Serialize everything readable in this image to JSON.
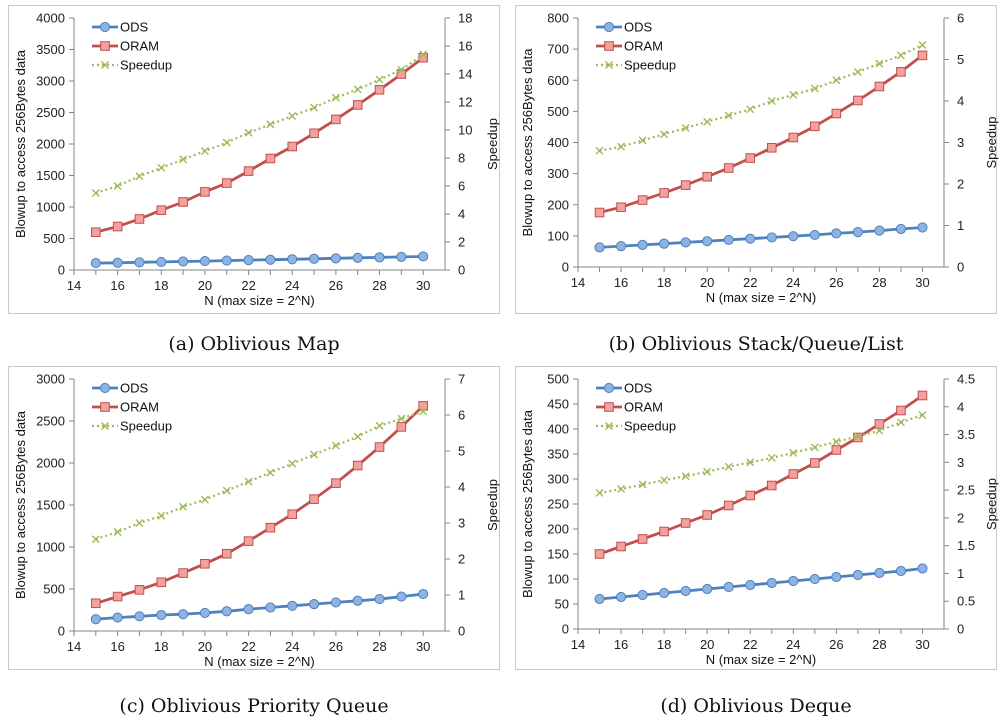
{
  "colors": {
    "ods": "#4f81bd",
    "ods_fill": "#8db3e2",
    "oram": "#c0504d",
    "oram_fill": "#f2a19e",
    "speedup": "#9bbb59",
    "axis": "#868686",
    "frame": "#c8c8c8"
  },
  "chart_data": [
    {
      "id": "a",
      "type": "line",
      "caption": "(a) Oblivious Map",
      "xlabel": "N (max size = 2^N)",
      "ylabel": "Blowup to access 256Bytes data",
      "y2label": "Speedup",
      "x": [
        15,
        16,
        17,
        18,
        19,
        20,
        21,
        22,
        23,
        24,
        25,
        26,
        27,
        28,
        29,
        30
      ],
      "xlim": [
        14,
        31
      ],
      "xticks": [
        14,
        16,
        18,
        20,
        22,
        24,
        26,
        28,
        30
      ],
      "ylim": [
        0,
        4000
      ],
      "yticks": [
        0,
        500,
        1000,
        1500,
        2000,
        2500,
        3000,
        3500,
        4000
      ],
      "y2lim": [
        0,
        18
      ],
      "y2ticks": [
        0,
        2,
        4,
        6,
        8,
        10,
        12,
        14,
        16,
        18
      ],
      "legend": [
        "ODS",
        "ORAM",
        "Speedup"
      ],
      "series": [
        {
          "name": "ODS",
          "axis": "left",
          "marker": "circle",
          "values": [
            110,
            115,
            122,
            128,
            135,
            142,
            150,
            157,
            163,
            170,
            178,
            185,
            193,
            200,
            208,
            215
          ]
        },
        {
          "name": "ORAM",
          "axis": "left",
          "marker": "square",
          "values": [
            600,
            690,
            810,
            950,
            1080,
            1240,
            1380,
            1570,
            1770,
            1960,
            2170,
            2390,
            2620,
            2860,
            3110,
            3370
          ]
        },
        {
          "name": "Speedup",
          "axis": "right",
          "marker": "x",
          "values": [
            5.5,
            6.0,
            6.7,
            7.3,
            7.9,
            8.5,
            9.1,
            9.8,
            10.4,
            11.0,
            11.6,
            12.3,
            12.9,
            13.6,
            14.3,
            15.4
          ]
        }
      ]
    },
    {
      "id": "b",
      "type": "line",
      "caption": "(b) Oblivious Stack/Queue/List",
      "xlabel": "N (max size = 2^N)",
      "ylabel": "Blowup to access 256Bytes data",
      "y2label": "Speedup",
      "x": [
        15,
        16,
        17,
        18,
        19,
        20,
        21,
        22,
        23,
        24,
        25,
        26,
        27,
        28,
        29,
        30
      ],
      "xlim": [
        14,
        31
      ],
      "xticks": [
        14,
        16,
        18,
        20,
        22,
        24,
        26,
        28,
        30
      ],
      "ylim": [
        0,
        800
      ],
      "yticks": [
        0,
        100,
        200,
        300,
        400,
        500,
        600,
        700,
        800
      ],
      "y2lim": [
        0,
        6
      ],
      "y2ticks": [
        0,
        1,
        2,
        3,
        4,
        5,
        6
      ],
      "legend": [
        "ODS",
        "ORAM",
        "Speedup"
      ],
      "series": [
        {
          "name": "ODS",
          "axis": "left",
          "marker": "circle",
          "values": [
            63,
            67,
            71,
            75,
            79,
            83,
            87,
            91,
            95,
            99,
            103,
            108,
            112,
            117,
            122,
            127
          ]
        },
        {
          "name": "ORAM",
          "axis": "left",
          "marker": "square",
          "values": [
            175,
            192,
            215,
            238,
            263,
            290,
            318,
            350,
            383,
            416,
            452,
            493,
            535,
            580,
            627,
            680
          ]
        },
        {
          "name": "Speedup",
          "axis": "right",
          "marker": "x",
          "values": [
            2.8,
            2.9,
            3.05,
            3.2,
            3.35,
            3.5,
            3.65,
            3.8,
            4.0,
            4.15,
            4.3,
            4.5,
            4.7,
            4.9,
            5.1,
            5.35
          ]
        }
      ]
    },
    {
      "id": "c",
      "type": "line",
      "caption": "(c) Oblivious Priority Queue",
      "xlabel": "N (max size = 2^N)",
      "ylabel": "Blowup to access 256Bytes data",
      "y2label": "Speedup",
      "x": [
        15,
        16,
        17,
        18,
        19,
        20,
        21,
        22,
        23,
        24,
        25,
        26,
        27,
        28,
        29,
        30
      ],
      "xlim": [
        14,
        31
      ],
      "xticks": [
        14,
        16,
        18,
        20,
        22,
        24,
        26,
        28,
        30
      ],
      "ylim": [
        0,
        3000
      ],
      "yticks": [
        0,
        500,
        1000,
        1500,
        2000,
        2500,
        3000
      ],
      "y2lim": [
        0,
        7
      ],
      "y2ticks": [
        0,
        1,
        2,
        3,
        4,
        5,
        6,
        7
      ],
      "legend": [
        "ODS",
        "ORAM",
        "Speedup"
      ],
      "series": [
        {
          "name": "ODS",
          "axis": "left",
          "marker": "circle",
          "values": [
            140,
            160,
            175,
            190,
            200,
            215,
            235,
            260,
            280,
            300,
            320,
            340,
            360,
            380,
            410,
            440
          ]
        },
        {
          "name": "ORAM",
          "axis": "left",
          "marker": "square",
          "values": [
            330,
            410,
            490,
            580,
            690,
            800,
            920,
            1070,
            1230,
            1390,
            1570,
            1760,
            1970,
            2190,
            2430,
            2680
          ]
        },
        {
          "name": "Speedup",
          "axis": "right",
          "marker": "x",
          "values": [
            2.55,
            2.75,
            3.0,
            3.2,
            3.45,
            3.65,
            3.9,
            4.15,
            4.4,
            4.65,
            4.9,
            5.15,
            5.4,
            5.7,
            5.9,
            6.1
          ]
        }
      ]
    },
    {
      "id": "d",
      "type": "line",
      "caption": "(d) Oblivious Deque",
      "xlabel": "N (max size = 2^N)",
      "ylabel": "Blowup  to access 256Bytes data",
      "y2label": "Speedup",
      "x": [
        15,
        16,
        17,
        18,
        19,
        20,
        21,
        22,
        23,
        24,
        25,
        26,
        27,
        28,
        29,
        30
      ],
      "xlim": [
        14,
        31
      ],
      "xticks": [
        14,
        16,
        18,
        20,
        22,
        24,
        26,
        28,
        30
      ],
      "ylim": [
        0,
        500
      ],
      "yticks": [
        0,
        50,
        100,
        150,
        200,
        250,
        300,
        350,
        400,
        450,
        500
      ],
      "y2lim": [
        0,
        4.5
      ],
      "y2ticks": [
        "0",
        "0.5",
        "1",
        "1.5",
        "2",
        "2.5",
        "3",
        "3.5",
        "4",
        "4.5"
      ],
      "legend": [
        "ODS",
        "ORAM",
        "Speedup"
      ],
      "series": [
        {
          "name": "ODS",
          "axis": "left",
          "marker": "circle",
          "values": [
            60,
            64,
            68,
            72,
            76,
            80,
            84,
            88,
            92,
            96,
            100,
            104,
            108,
            112,
            116,
            121
          ]
        },
        {
          "name": "ORAM",
          "axis": "left",
          "marker": "square",
          "values": [
            150,
            165,
            180,
            195,
            212,
            228,
            247,
            267,
            287,
            310,
            332,
            358,
            383,
            410,
            437,
            467
          ]
        },
        {
          "name": "Speedup",
          "axis": "right",
          "marker": "x",
          "values": [
            2.45,
            2.52,
            2.6,
            2.68,
            2.75,
            2.83,
            2.92,
            3.0,
            3.08,
            3.17,
            3.27,
            3.37,
            3.47,
            3.57,
            3.72,
            3.85
          ]
        }
      ]
    }
  ]
}
